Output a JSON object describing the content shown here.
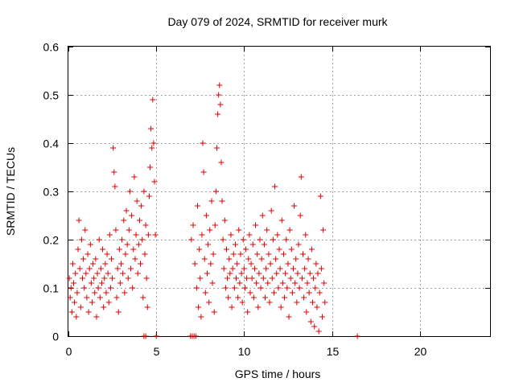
{
  "chart_data": {
    "type": "scatter",
    "title": "Day 079 of 2024, SRMTID for receiver murk",
    "xlabel": "GPS time / hours",
    "ylabel": "SRMTID / TECUs",
    "xlim": [
      0,
      24
    ],
    "ylim": [
      0,
      0.6
    ],
    "xticks": [
      0,
      5,
      10,
      15,
      20
    ],
    "xtick_labels": [
      "0",
      "5",
      "10",
      "15",
      "20"
    ],
    "yticks": [
      0,
      0.1,
      0.2,
      0.3,
      0.4,
      0.5,
      0.6
    ],
    "ytick_labels": [
      "0",
      "0.1",
      "0.2",
      "0.3",
      "0.4",
      "0.5",
      "0.6"
    ],
    "grid": true,
    "marker": "plus",
    "color": "#e00000",
    "series": [
      {
        "name": "SRMTID",
        "points": [
          [
            0.05,
            0.12
          ],
          [
            0.1,
            0.08
          ],
          [
            0.15,
            0.1
          ],
          [
            0.2,
            0.05
          ],
          [
            0.25,
            0.15
          ],
          [
            0.3,
            0.11
          ],
          [
            0.35,
            0.07
          ],
          [
            0.4,
            0.13
          ],
          [
            0.45,
            0.04
          ],
          [
            0.5,
            0.09
          ],
          [
            0.55,
            0.18
          ],
          [
            0.6,
            0.24
          ],
          [
            0.65,
            0.14
          ],
          [
            0.7,
            0.06
          ],
          [
            0.75,
            0.2
          ],
          [
            0.8,
            0.12
          ],
          [
            0.85,
            0.16
          ],
          [
            0.9,
            0.1
          ],
          [
            0.95,
            0.22
          ],
          [
            1.0,
            0.13
          ],
          [
            1.05,
            0.08
          ],
          [
            1.1,
            0.17
          ],
          [
            1.15,
            0.05
          ],
          [
            1.2,
            0.14
          ],
          [
            1.25,
            0.19
          ],
          [
            1.3,
            0.11
          ],
          [
            1.35,
            0.07
          ],
          [
            1.4,
            0.15
          ],
          [
            1.45,
            0.12
          ],
          [
            1.5,
            0.09
          ],
          [
            1.55,
            0.16
          ],
          [
            1.6,
            0.04
          ],
          [
            1.65,
            0.13
          ],
          [
            1.7,
            0.1
          ],
          [
            1.75,
            0.2
          ],
          [
            1.8,
            0.08
          ],
          [
            1.85,
            0.14
          ],
          [
            1.9,
            0.11
          ],
          [
            1.95,
            0.18
          ],
          [
            2.0,
            0.06
          ],
          [
            2.05,
            0.12
          ],
          [
            2.1,
            0.15
          ],
          [
            2.15,
            0.09
          ],
          [
            2.2,
            0.17
          ],
          [
            2.25,
            0.13
          ],
          [
            2.3,
            0.07
          ],
          [
            2.35,
            0.21
          ],
          [
            2.4,
            0.1
          ],
          [
            2.45,
            0.16
          ],
          [
            2.5,
            0.12
          ],
          [
            2.55,
            0.39
          ],
          [
            2.6,
            0.34
          ],
          [
            2.65,
            0.31
          ],
          [
            2.7,
            0.22
          ],
          [
            2.75,
            0.08
          ],
          [
            2.8,
            0.14
          ],
          [
            2.85,
            0.05
          ],
          [
            2.9,
            0.18
          ],
          [
            2.95,
            0.11
          ],
          [
            3.0,
            0.15
          ],
          [
            3.05,
            0.2
          ],
          [
            3.1,
            0.13
          ],
          [
            3.15,
            0.24
          ],
          [
            3.2,
            0.09
          ],
          [
            3.25,
            0.17
          ],
          [
            3.3,
            0.26
          ],
          [
            3.35,
            0.19
          ],
          [
            3.4,
            0.12
          ],
          [
            3.45,
            0.22
          ],
          [
            3.5,
            0.3
          ],
          [
            3.55,
            0.14
          ],
          [
            3.6,
            0.25
          ],
          [
            3.65,
            0.1
          ],
          [
            3.7,
            0.18
          ],
          [
            3.75,
            0.33
          ],
          [
            3.8,
            0.16
          ],
          [
            3.85,
            0.21
          ],
          [
            3.9,
            0.28
          ],
          [
            3.95,
            0.13
          ],
          [
            4.0,
            0.19
          ],
          [
            4.05,
            0.24
          ],
          [
            4.1,
            0.15
          ],
          [
            4.15,
            0.27
          ],
          [
            4.2,
            0.2
          ],
          [
            4.25,
            0.08
          ],
          [
            4.3,
            0.3
          ],
          [
            4.35,
            0.17
          ],
          [
            4.4,
            0.23
          ],
          [
            4.45,
            0.12
          ],
          [
            4.5,
            0.06
          ],
          [
            4.55,
            0.21
          ],
          [
            4.6,
            0.29
          ],
          [
            4.65,
            0.35
          ],
          [
            4.7,
            0.43
          ],
          [
            4.75,
            0.39
          ],
          [
            4.8,
            0.49
          ],
          [
            4.85,
            0.4
          ],
          [
            4.9,
            0.32
          ],
          [
            4.95,
            0.21
          ],
          [
            5.0,
            0.0
          ],
          [
            4.3,
            0.0
          ],
          [
            4.4,
            0.0
          ],
          [
            6.95,
            0.0
          ],
          [
            7.05,
            0.0
          ],
          [
            7.15,
            0.0
          ],
          [
            7.25,
            0.0
          ],
          [
            7.0,
            0.2
          ],
          [
            7.1,
            0.23
          ],
          [
            7.2,
            0.15
          ],
          [
            7.3,
            0.1
          ],
          [
            7.35,
            0.27
          ],
          [
            7.4,
            0.06
          ],
          [
            7.45,
            0.18
          ],
          [
            7.5,
            0.12
          ],
          [
            7.55,
            0.04
          ],
          [
            7.6,
            0.21
          ],
          [
            7.65,
            0.4
          ],
          [
            7.7,
            0.34
          ],
          [
            7.75,
            0.16
          ],
          [
            7.8,
            0.09
          ],
          [
            7.85,
            0.25
          ],
          [
            7.9,
            0.13
          ],
          [
            7.95,
            0.19
          ],
          [
            8.0,
            0.07
          ],
          [
            8.05,
            0.22
          ],
          [
            8.1,
            0.15
          ],
          [
            8.15,
            0.28
          ],
          [
            8.2,
            0.11
          ],
          [
            8.25,
            0.17
          ],
          [
            8.3,
            0.05
          ],
          [
            8.35,
            0.23
          ],
          [
            8.4,
            0.3
          ],
          [
            8.45,
            0.39
          ],
          [
            8.5,
            0.46
          ],
          [
            8.55,
            0.5
          ],
          [
            8.6,
            0.52
          ],
          [
            8.65,
            0.48
          ],
          [
            8.7,
            0.36
          ],
          [
            8.75,
            0.28
          ],
          [
            8.8,
            0.2
          ],
          [
            8.85,
            0.14
          ],
          [
            8.9,
            0.24
          ],
          [
            8.95,
            0.1
          ],
          [
            9.0,
            0.18
          ],
          [
            9.05,
            0.12
          ],
          [
            9.1,
            0.08
          ],
          [
            9.15,
            0.16
          ],
          [
            9.2,
            0.13
          ],
          [
            9.25,
            0.21
          ],
          [
            9.3,
            0.06
          ],
          [
            9.35,
            0.14
          ],
          [
            9.4,
            0.17
          ],
          [
            9.45,
            0.1
          ],
          [
            9.5,
            0.19
          ],
          [
            9.55,
            0.12
          ],
          [
            9.6,
            0.15
          ],
          [
            9.65,
            0.08
          ],
          [
            9.7,
            0.22
          ],
          [
            9.75,
            0.11
          ],
          [
            9.8,
            0.17
          ],
          [
            9.85,
            0.13
          ],
          [
            9.9,
            0.07
          ],
          [
            9.95,
            0.2
          ],
          [
            10.0,
            0.14
          ],
          [
            10.05,
            0.1
          ],
          [
            10.1,
            0.18
          ],
          [
            10.15,
            0.12
          ],
          [
            10.2,
            0.05
          ],
          [
            10.25,
            0.16
          ],
          [
            10.3,
            0.21
          ],
          [
            10.35,
            0.09
          ],
          [
            10.4,
            0.15
          ],
          [
            10.45,
            0.12
          ],
          [
            10.5,
            0.19
          ],
          [
            10.55,
            0.08
          ],
          [
            10.6,
            0.14
          ],
          [
            10.65,
            0.23
          ],
          [
            10.7,
            0.11
          ],
          [
            10.75,
            0.17
          ],
          [
            10.8,
            0.06
          ],
          [
            10.85,
            0.13
          ],
          [
            10.9,
            0.2
          ],
          [
            10.95,
            0.1
          ],
          [
            11.0,
            0.16
          ],
          [
            11.05,
            0.25
          ],
          [
            11.1,
            0.12
          ],
          [
            11.15,
            0.19
          ],
          [
            11.2,
            0.08
          ],
          [
            11.25,
            0.14
          ],
          [
            11.3,
            0.22
          ],
          [
            11.35,
            0.11
          ],
          [
            11.4,
            0.17
          ],
          [
            11.45,
            0.07
          ],
          [
            11.5,
            0.15
          ],
          [
            11.55,
            0.26
          ],
          [
            11.6,
            0.12
          ],
          [
            11.65,
            0.2
          ],
          [
            11.7,
            0.09
          ],
          [
            11.75,
            0.31
          ],
          [
            11.8,
            0.16
          ],
          [
            11.85,
            0.13
          ],
          [
            11.9,
            0.21
          ],
          [
            11.95,
            0.1
          ],
          [
            12.0,
            0.18
          ],
          [
            12.05,
            0.14
          ],
          [
            12.1,
            0.06
          ],
          [
            12.15,
            0.24
          ],
          [
            12.2,
            0.11
          ],
          [
            12.25,
            0.17
          ],
          [
            12.3,
            0.08
          ],
          [
            12.35,
            0.13
          ],
          [
            12.4,
            0.2
          ],
          [
            12.45,
            0.1
          ],
          [
            12.5,
            0.15
          ],
          [
            12.55,
            0.04
          ],
          [
            12.6,
            0.22
          ],
          [
            12.65,
            0.12
          ],
          [
            12.7,
            0.18
          ],
          [
            12.75,
            0.09
          ],
          [
            12.8,
            0.14
          ],
          [
            12.85,
            0.27
          ],
          [
            12.9,
            0.11
          ],
          [
            12.95,
            0.16
          ],
          [
            13.0,
            0.07
          ],
          [
            13.05,
            0.13
          ],
          [
            13.1,
            0.19
          ],
          [
            13.15,
            0.1
          ],
          [
            13.2,
            0.25
          ],
          [
            13.25,
            0.33
          ],
          [
            13.3,
            0.12
          ],
          [
            13.35,
            0.17
          ],
          [
            13.4,
            0.08
          ],
          [
            13.45,
            0.14
          ],
          [
            13.5,
            0.21
          ],
          [
            13.55,
            0.05
          ],
          [
            13.6,
            0.11
          ],
          [
            13.65,
            0.16
          ],
          [
            13.7,
            0.09
          ],
          [
            13.75,
            0.13
          ],
          [
            13.8,
            0.03
          ],
          [
            13.85,
            0.18
          ],
          [
            13.9,
            0.07
          ],
          [
            13.95,
            0.12
          ],
          [
            14.0,
            0.02
          ],
          [
            14.05,
            0.1
          ],
          [
            14.1,
            0.15
          ],
          [
            14.15,
            0.06
          ],
          [
            14.2,
            0.13
          ],
          [
            14.25,
            0.01
          ],
          [
            14.3,
            0.09
          ],
          [
            14.35,
            0.29
          ],
          [
            14.4,
            0.14
          ],
          [
            14.45,
            0.04
          ],
          [
            14.5,
            0.22
          ],
          [
            14.55,
            0.11
          ],
          [
            14.6,
            0.07
          ],
          [
            16.45,
            0.0
          ]
        ]
      }
    ]
  }
}
